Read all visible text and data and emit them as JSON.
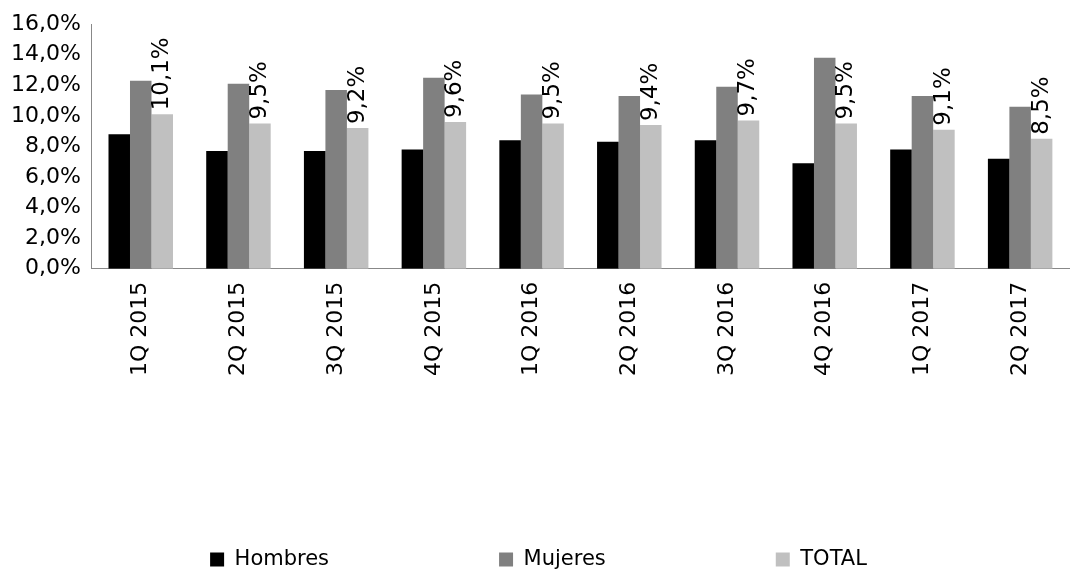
{
  "chart_data": {
    "type": "bar",
    "categories": [
      "1Q 2015",
      "2Q 2015",
      "3Q 2015",
      "4Q 2015",
      "1Q 2016",
      "2Q 2016",
      "3Q 2016",
      "4Q 2016",
      "1Q 2017",
      "2Q 2017"
    ],
    "series": [
      {
        "name": "Hombres",
        "color": "#000000",
        "values": [
          8.8,
          7.7,
          7.7,
          7.8,
          8.4,
          8.3,
          8.4,
          6.9,
          7.8,
          7.2
        ]
      },
      {
        "name": "Mujeres",
        "color": "#808080",
        "values": [
          12.3,
          12.1,
          11.7,
          12.5,
          11.4,
          11.3,
          11.9,
          13.8,
          11.3,
          10.6
        ]
      },
      {
        "name": "TOTAL",
        "color": "#c0c0c0",
        "values": [
          10.1,
          9.5,
          9.2,
          9.6,
          9.5,
          9.4,
          9.7,
          9.5,
          9.1,
          8.5
        ],
        "value_labels": [
          "10,1%",
          "9,5%",
          "9,2%",
          "9,6%",
          "9,5%",
          "9,4%",
          "9,7%",
          "9,5%",
          "9,1%",
          "8,5%"
        ]
      }
    ],
    "ylim": [
      0,
      16
    ],
    "yticks": [
      {
        "value": 0,
        "label": "0,0%"
      },
      {
        "value": 2,
        "label": "2,0%"
      },
      {
        "value": 4,
        "label": "4,0%"
      },
      {
        "value": 6,
        "label": "6,0%"
      },
      {
        "value": 8,
        "label": "8,0%"
      },
      {
        "value": 10,
        "label": "10,0%"
      },
      {
        "value": 12,
        "label": "12,0%"
      },
      {
        "value": 14,
        "label": "14,0%"
      },
      {
        "value": 16,
        "label": "16,0%"
      }
    ],
    "legend": "bottom",
    "grid": false
  }
}
